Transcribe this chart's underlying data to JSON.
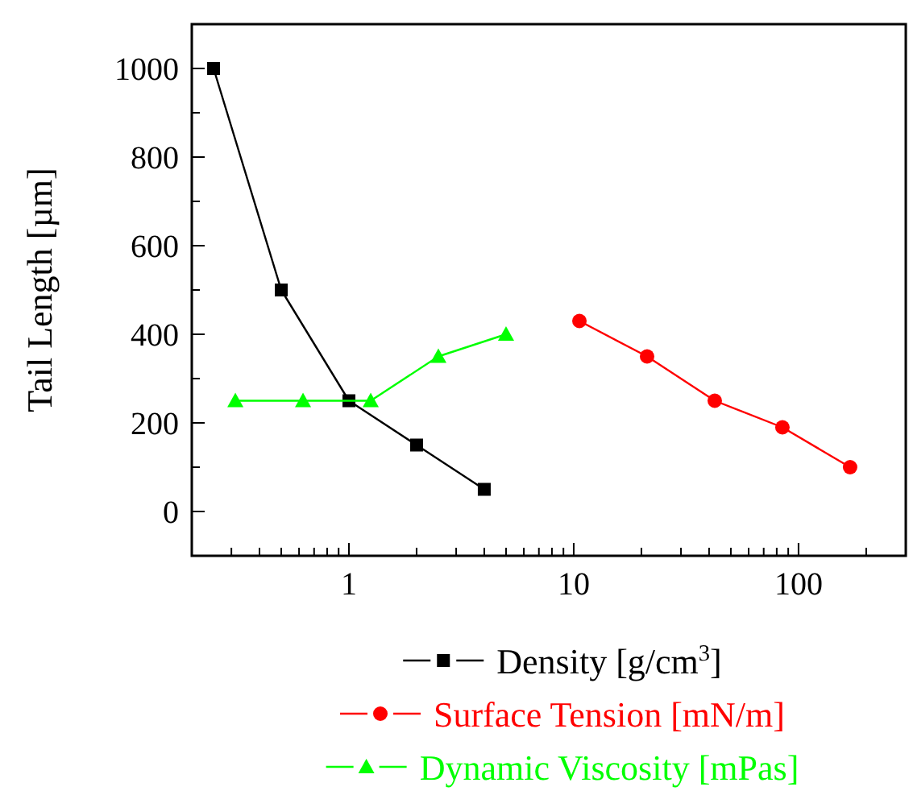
{
  "chart_data": {
    "type": "line",
    "ylabel": "Tail Length [µm]",
    "log": "x",
    "xlim": [
      0.2,
      300
    ],
    "xticks": [
      {
        "value": 0.2,
        "label": null
      },
      {
        "value": 0.3,
        "label": null
      },
      {
        "value": 0.4,
        "label": null
      },
      {
        "value": 0.5,
        "label": null
      },
      {
        "value": 0.6,
        "label": null
      },
      {
        "value": 0.7,
        "label": null
      },
      {
        "value": 0.8,
        "label": null
      },
      {
        "value": 0.9,
        "label": null
      },
      1,
      {
        "value": 2,
        "label": null
      },
      {
        "value": 3,
        "label": null
      },
      {
        "value": 4,
        "label": null
      },
      {
        "value": 5,
        "label": null
      },
      {
        "value": 6,
        "label": null
      },
      {
        "value": 7,
        "label": null
      },
      {
        "value": 8,
        "label": null
      },
      {
        "value": 9,
        "label": null
      },
      10,
      {
        "value": 20,
        "label": null
      },
      {
        "value": 30,
        "label": null
      },
      {
        "value": 40,
        "label": null
      },
      {
        "value": 50,
        "label": null
      },
      {
        "value": 60,
        "label": null
      },
      {
        "value": 70,
        "label": null
      },
      {
        "value": 80,
        "label": null
      },
      {
        "value": 90,
        "label": null
      },
      100,
      {
        "value": 200,
        "label": null
      }
    ],
    "ylim": [
      -100,
      1100
    ],
    "yticks": [
      {
        "value": -100,
        "label": null
      },
      0,
      {
        "value": 100,
        "label": null
      },
      200,
      {
        "value": 300,
        "label": null
      },
      400,
      {
        "value": 500,
        "label": null
      },
      600,
      {
        "value": 700,
        "label": null
      },
      800,
      {
        "value": 900,
        "label": null
      },
      1000
    ],
    "grid": false,
    "legend": "bottom",
    "line_style": "solid",
    "series": [
      {
        "name": "Density [g/cm$^{3}$]",
        "color": "#000000",
        "marker": "square",
        "x": [
          0.25,
          0.5,
          1,
          2,
          4
        ],
        "values": [
          1000,
          500,
          250,
          150,
          50
        ]
      },
      {
        "name": "Surface Tension [mN/m]",
        "color": "#ff0000",
        "marker": "circle",
        "x": [
          10.6,
          21.2,
          42.4,
          84.8,
          169.6
        ],
        "values": [
          430,
          350,
          250,
          190,
          100
        ]
      },
      {
        "name": "Dynamic Viscosity [mPas]",
        "color": "#00ff00",
        "marker": "triangle",
        "x": [
          0.3125,
          0.625,
          1.25,
          2.5,
          5
        ],
        "values": [
          250,
          250,
          250,
          350,
          400
        ]
      }
    ]
  }
}
